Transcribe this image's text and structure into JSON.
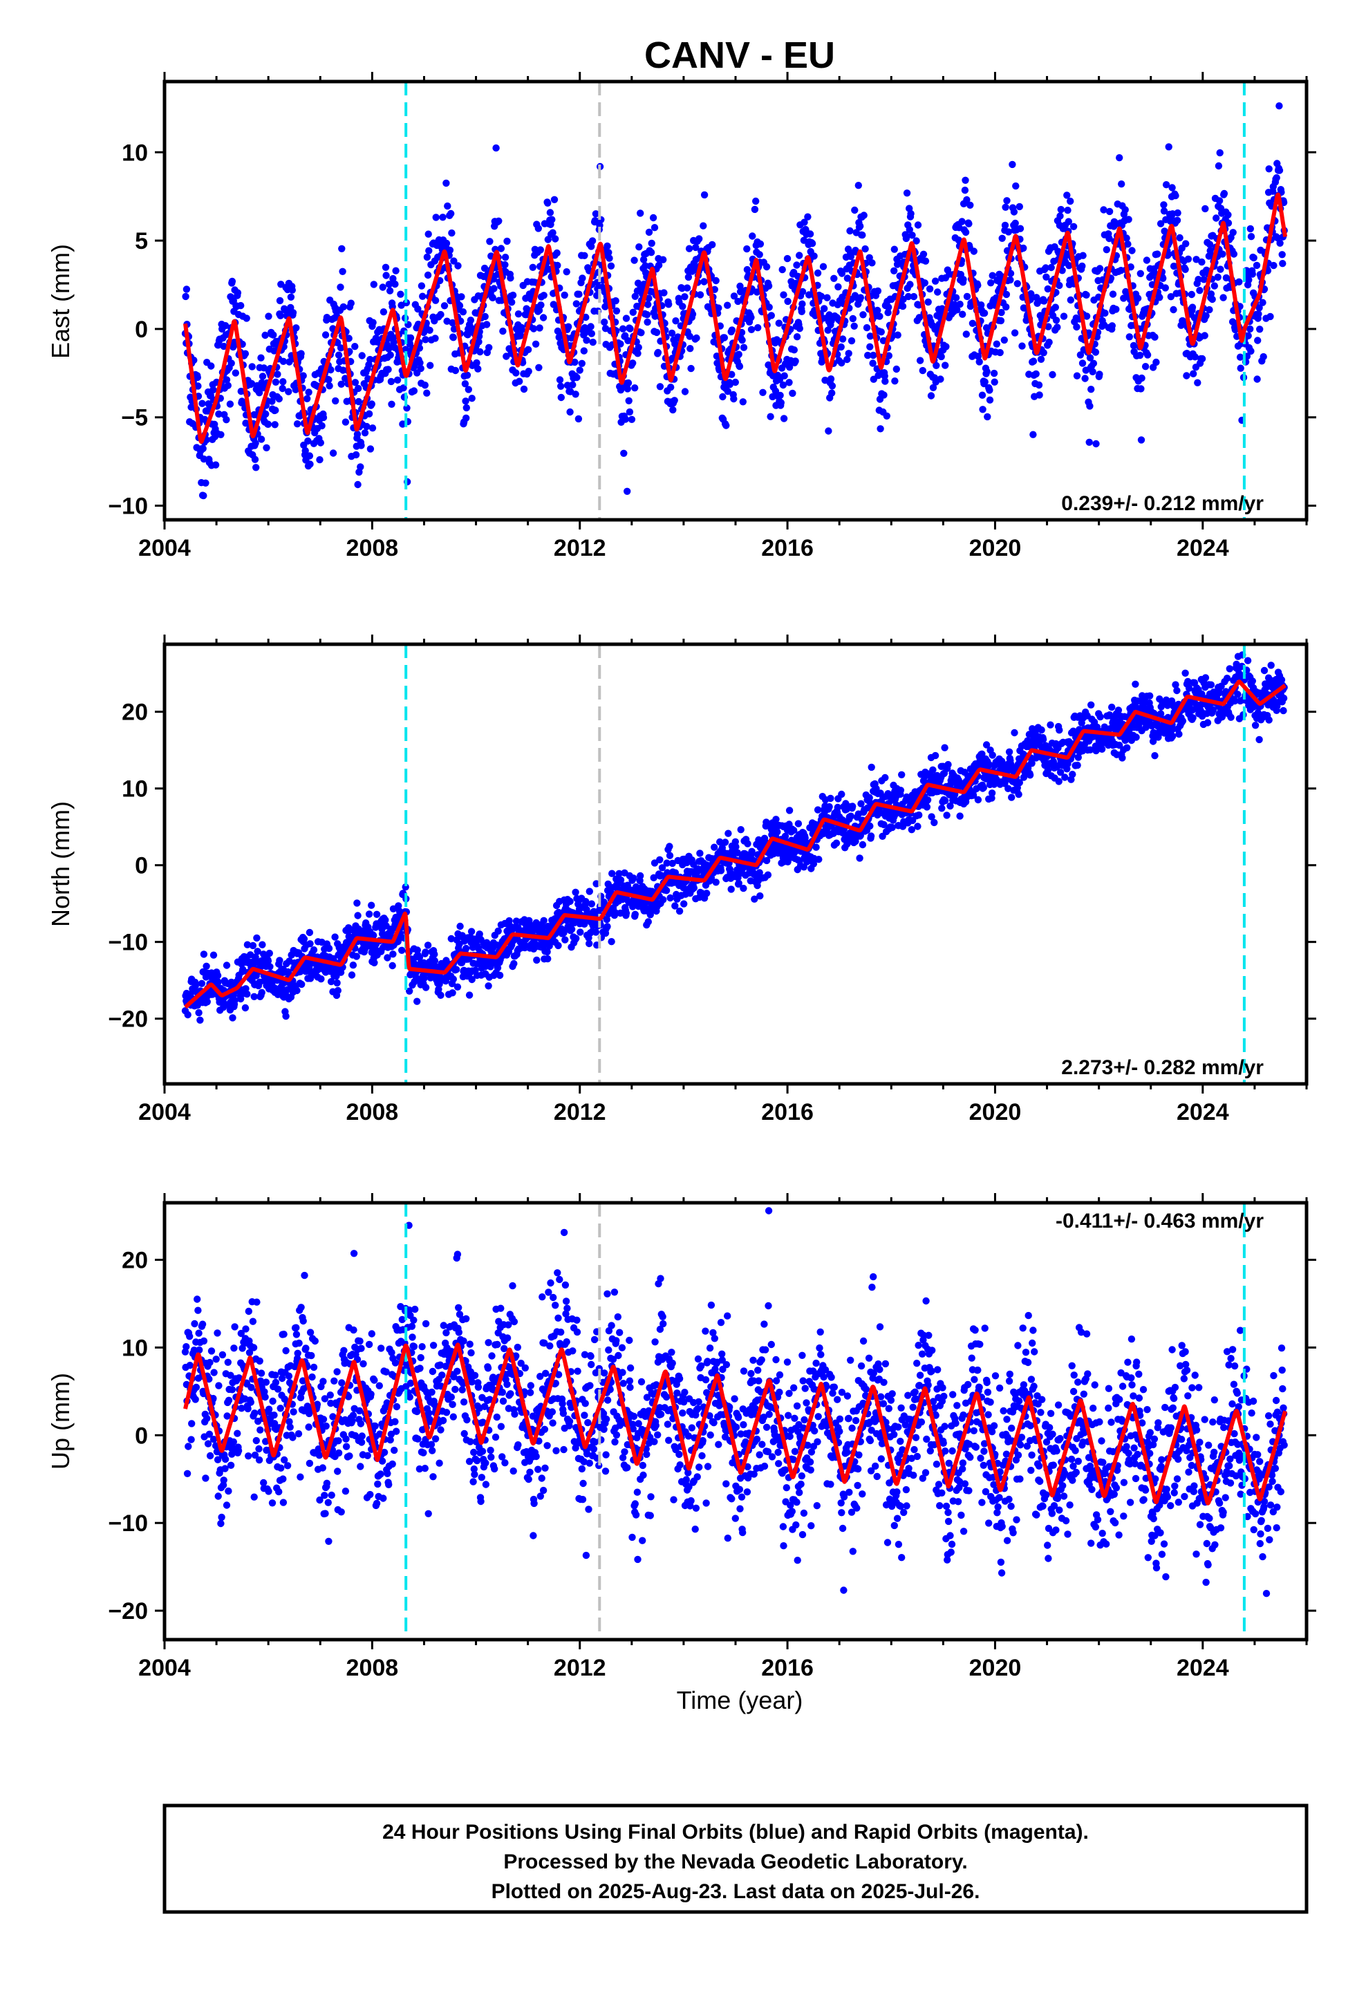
{
  "page_title": "CANV - EU",
  "x_axis": {
    "label": "Time (year)",
    "ticks": [
      "2004",
      "2008",
      "2012",
      "2016",
      "2020",
      "2024"
    ],
    "xlim": [
      2004.0,
      2026.0
    ]
  },
  "info_box": {
    "line1": "24 Hour Positions Using Final Orbits (blue) and Rapid Orbits (magenta).",
    "line2": "Processed by the Nevada Geodetic Laboratory.",
    "line3": "Plotted on 2025-Aug-23. Last data on 2025-Jul-26."
  },
  "colors": {
    "data_points": "#0000ff",
    "model_fit": "#ff0000",
    "equipment_change": "#00e5ee",
    "other_event": "#c0c0c0",
    "frame": "#000000"
  },
  "chart_data": [
    {
      "type": "scatter",
      "ylabel": "East (mm)",
      "ylim": [
        -10.8,
        14.0
      ],
      "yticks": [
        "10",
        "5",
        "0",
        "-5",
        "-10"
      ],
      "rate_label": "0.239+/- 0.212 mm/yr",
      "rate_position": "bottom-right",
      "series": [
        {
          "kind": "points",
          "x_range": [
            2004.4,
            2025.57
          ],
          "mean_at_2004_4": -2.0,
          "rate_mm_per_yr": 0.239,
          "annual_amplitude": 4.2,
          "scatter": 1.8
        },
        {
          "kind": "model",
          "x": [
            2004.4,
            2004.7,
            2005.0,
            2005.35,
            2005.7,
            2006.4,
            2006.75,
            2007.4,
            2007.7,
            2008.4,
            2008.65,
            2009.4,
            2009.8,
            2010.4,
            2010.8,
            2011.4,
            2011.8,
            2012.4,
            2012.8,
            2013.4,
            2013.75,
            2014.4,
            2014.8,
            2015.4,
            2015.75,
            2016.4,
            2016.8,
            2017.4,
            2017.8,
            2018.4,
            2018.8,
            2019.4,
            2019.8,
            2020.4,
            2020.8,
            2021.4,
            2021.8,
            2022.4,
            2022.8,
            2023.4,
            2023.8,
            2024.4,
            2024.75,
            2024.8,
            2025.1,
            2025.45,
            2025.6
          ],
          "y": [
            0.3,
            -6.5,
            -4.0,
            0.6,
            -6.2,
            0.7,
            -6.0,
            0.8,
            -5.8,
            1.2,
            -2.8,
            4.5,
            -2.5,
            4.5,
            -2.2,
            4.8,
            -2.0,
            5.0,
            -3.2,
            3.5,
            -3.0,
            4.5,
            -3.0,
            4.0,
            -2.5,
            4.2,
            -2.5,
            4.5,
            -2.3,
            5.0,
            -2.0,
            5.2,
            -1.8,
            5.4,
            -1.5,
            5.6,
            -1.5,
            5.8,
            -1.2,
            6.0,
            -1.0,
            6.1,
            -0.8,
            0.0,
            2.0,
            7.8,
            5.0
          ]
        }
      ],
      "event_lines": [
        {
          "x": 2008.65,
          "color": "cyan"
        },
        {
          "x": 2012.38,
          "color": "gray"
        },
        {
          "x": 2024.8,
          "color": "cyan"
        }
      ]
    },
    {
      "type": "scatter",
      "ylabel": "North (mm)",
      "ylim": [
        -28.5,
        28.8
      ],
      "yticks": [
        "20",
        "10",
        "0",
        "-10",
        "-20"
      ],
      "rate_label": "2.273+/- 0.282 mm/yr",
      "rate_position": "bottom-right",
      "series": [
        {
          "kind": "points",
          "x_range": [
            2004.4,
            2025.57
          ],
          "trend_x": [
            2004.4,
            2008.6,
            2008.7,
            2012.4,
            2016.0,
            2020.0,
            2022.0,
            2024.0,
            2025.6
          ],
          "trend_y": [
            -18.5,
            -8.0,
            -13.5,
            -6.5,
            2.0,
            11.0,
            18.0,
            24.0,
            22.0
          ],
          "annual_amplitude": 1.8,
          "scatter": 1.6
        },
        {
          "kind": "model",
          "x": [
            2004.4,
            2004.9,
            2005.1,
            2005.4,
            2005.7,
            2006.4,
            2006.7,
            2007.4,
            2007.7,
            2008.4,
            2008.65,
            2008.7,
            2009.4,
            2009.7,
            2010.4,
            2010.7,
            2011.4,
            2011.7,
            2012.4,
            2012.7,
            2013.4,
            2013.7,
            2014.4,
            2014.7,
            2015.4,
            2015.7,
            2016.4,
            2016.7,
            2017.4,
            2017.7,
            2018.4,
            2018.7,
            2019.4,
            2019.7,
            2020.4,
            2020.7,
            2021.4,
            2021.7,
            2022.4,
            2022.7,
            2023.4,
            2023.7,
            2024.4,
            2024.7,
            2025.1,
            2025.6
          ],
          "y": [
            -18.5,
            -15.5,
            -17.0,
            -16.0,
            -13.5,
            -15.0,
            -12.0,
            -13.0,
            -9.5,
            -10.0,
            -6.0,
            -13.5,
            -14.0,
            -11.5,
            -12.0,
            -9.0,
            -9.5,
            -6.5,
            -7.0,
            -3.5,
            -4.5,
            -1.5,
            -2.0,
            1.0,
            0.0,
            3.5,
            2.0,
            6.0,
            4.5,
            8.0,
            7.0,
            10.5,
            9.5,
            12.5,
            11.5,
            15.0,
            14.0,
            17.5,
            17.0,
            20.0,
            18.5,
            22.0,
            21.0,
            24.0,
            21.0,
            23.5
          ]
        }
      ],
      "event_lines": [
        {
          "x": 2008.65,
          "color": "cyan"
        },
        {
          "x": 2012.38,
          "color": "gray"
        },
        {
          "x": 2024.8,
          "color": "cyan"
        }
      ]
    },
    {
      "type": "scatter",
      "ylabel": "Up (mm)",
      "ylim": [
        -23.3,
        26.5
      ],
      "yticks": [
        "20",
        "10",
        "0",
        "-10",
        "-20"
      ],
      "rate_label": "-0.411+/- 0.463 mm/yr",
      "rate_position": "top-right",
      "series": [
        {
          "kind": "points",
          "x_range": [
            2004.4,
            2025.57
          ],
          "mean_at_2004_4": 3.5,
          "rate_mm_per_yr": -0.411,
          "annual_amplitude": 6.0,
          "scatter": 4.5
        },
        {
          "kind": "model",
          "x": [
            2004.4,
            2004.65,
            2005.1,
            2005.65,
            2006.1,
            2006.65,
            2007.1,
            2007.65,
            2008.1,
            2008.65,
            2009.1,
            2009.65,
            2010.1,
            2010.65,
            2011.1,
            2011.65,
            2012.1,
            2012.65,
            2013.1,
            2013.65,
            2014.1,
            2014.65,
            2015.1,
            2015.65,
            2016.1,
            2016.65,
            2017.1,
            2017.65,
            2018.1,
            2018.65,
            2019.1,
            2019.65,
            2020.1,
            2020.65,
            2021.1,
            2021.65,
            2022.1,
            2022.65,
            2023.1,
            2023.65,
            2024.1,
            2024.65,
            2025.1,
            2025.6
          ],
          "y": [
            3.0,
            9.5,
            -2.0,
            9.0,
            -2.5,
            8.8,
            -2.8,
            8.5,
            -3.0,
            10.5,
            -0.5,
            10.5,
            -1.0,
            10.0,
            -1.2,
            10.0,
            -1.5,
            8.0,
            -3.5,
            7.5,
            -4.0,
            7.0,
            -4.5,
            6.5,
            -5.0,
            6.0,
            -5.5,
            5.8,
            -5.8,
            5.5,
            -6.0,
            5.0,
            -6.5,
            4.5,
            -7.0,
            4.2,
            -7.2,
            3.8,
            -7.8,
            3.5,
            -8.0,
            3.0,
            -7.5,
            3.0
          ]
        }
      ],
      "event_lines": [
        {
          "x": 2008.65,
          "color": "cyan"
        },
        {
          "x": 2012.38,
          "color": "gray"
        },
        {
          "x": 2024.8,
          "color": "cyan"
        }
      ]
    }
  ]
}
